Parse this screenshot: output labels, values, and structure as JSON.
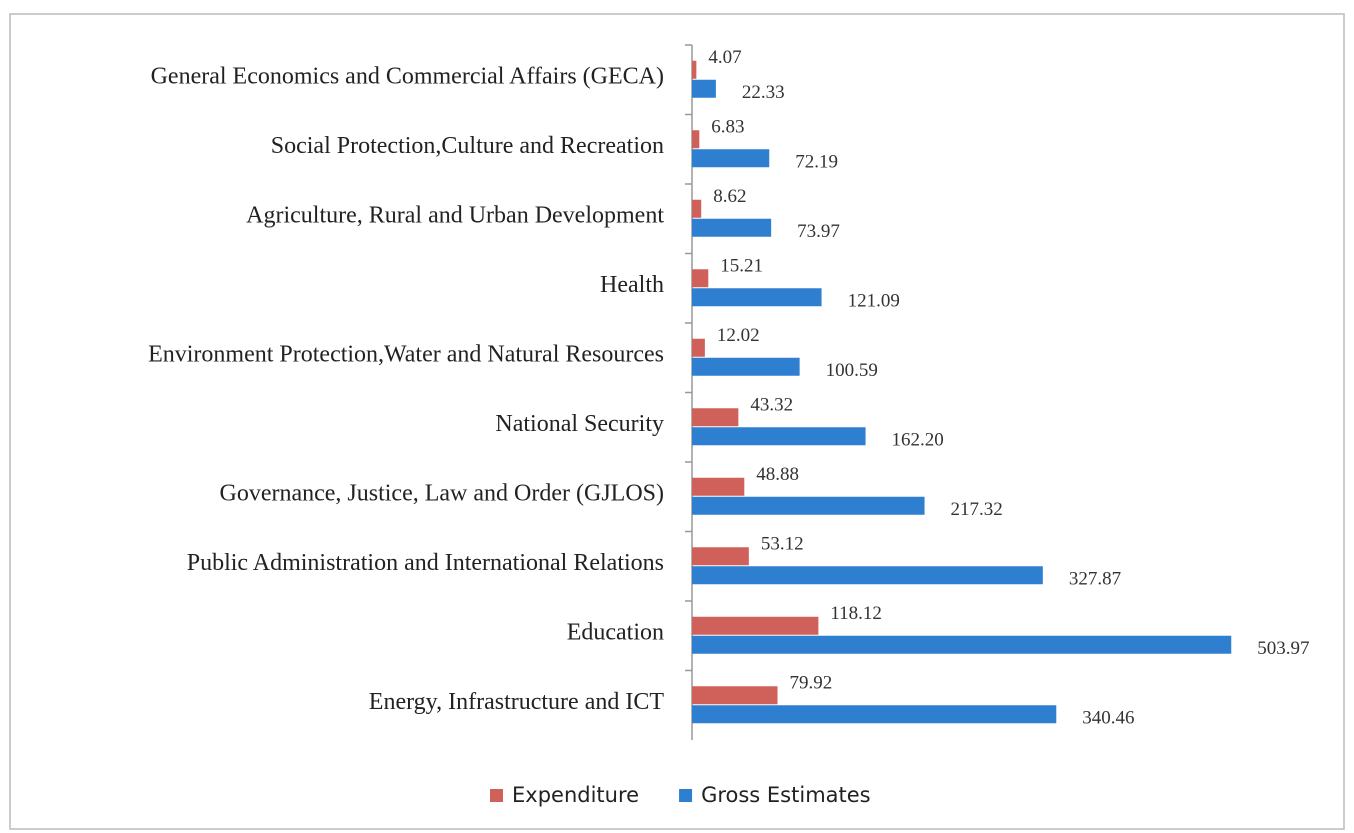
{
  "chart_data": {
    "type": "bar",
    "orientation": "horizontal",
    "categories": [
      "General Economics and Commercial Affairs (GECA)",
      "Social Protection,Culture and Recreation",
      "Agriculture, Rural and Urban Development",
      "Health",
      "Environment Protection,Water and Natural Resources",
      "National Security",
      "Governance, Justice, Law and Order (GJLOS)",
      "Public Administration and International Relations",
      "Education",
      "Energy, Infrastructure and ICT"
    ],
    "series": [
      {
        "name": "Expenditure",
        "color": "#d0605a",
        "values": [
          4.07,
          6.83,
          8.62,
          15.21,
          12.02,
          43.32,
          48.88,
          53.12,
          118.12,
          79.92
        ],
        "value_labels": [
          "4.07",
          "6.83",
          "8.62",
          "15.21",
          "12.02",
          "43.32",
          "48.88",
          "53.12",
          "118.12",
          "79.92"
        ]
      },
      {
        "name": "Gross Estimates",
        "color": "#2f7fd0",
        "values": [
          22.33,
          72.19,
          73.97,
          121.09,
          100.59,
          162.2,
          217.32,
          327.87,
          503.97,
          340.46
        ],
        "value_labels": [
          "22.33",
          "72.19",
          "73.97",
          "121.09",
          "100.59",
          "162.20",
          "217.32",
          "327.87",
          "503.97",
          "340.46"
        ]
      }
    ],
    "xlim": [
      0,
      600
    ],
    "legend": "bottom"
  }
}
